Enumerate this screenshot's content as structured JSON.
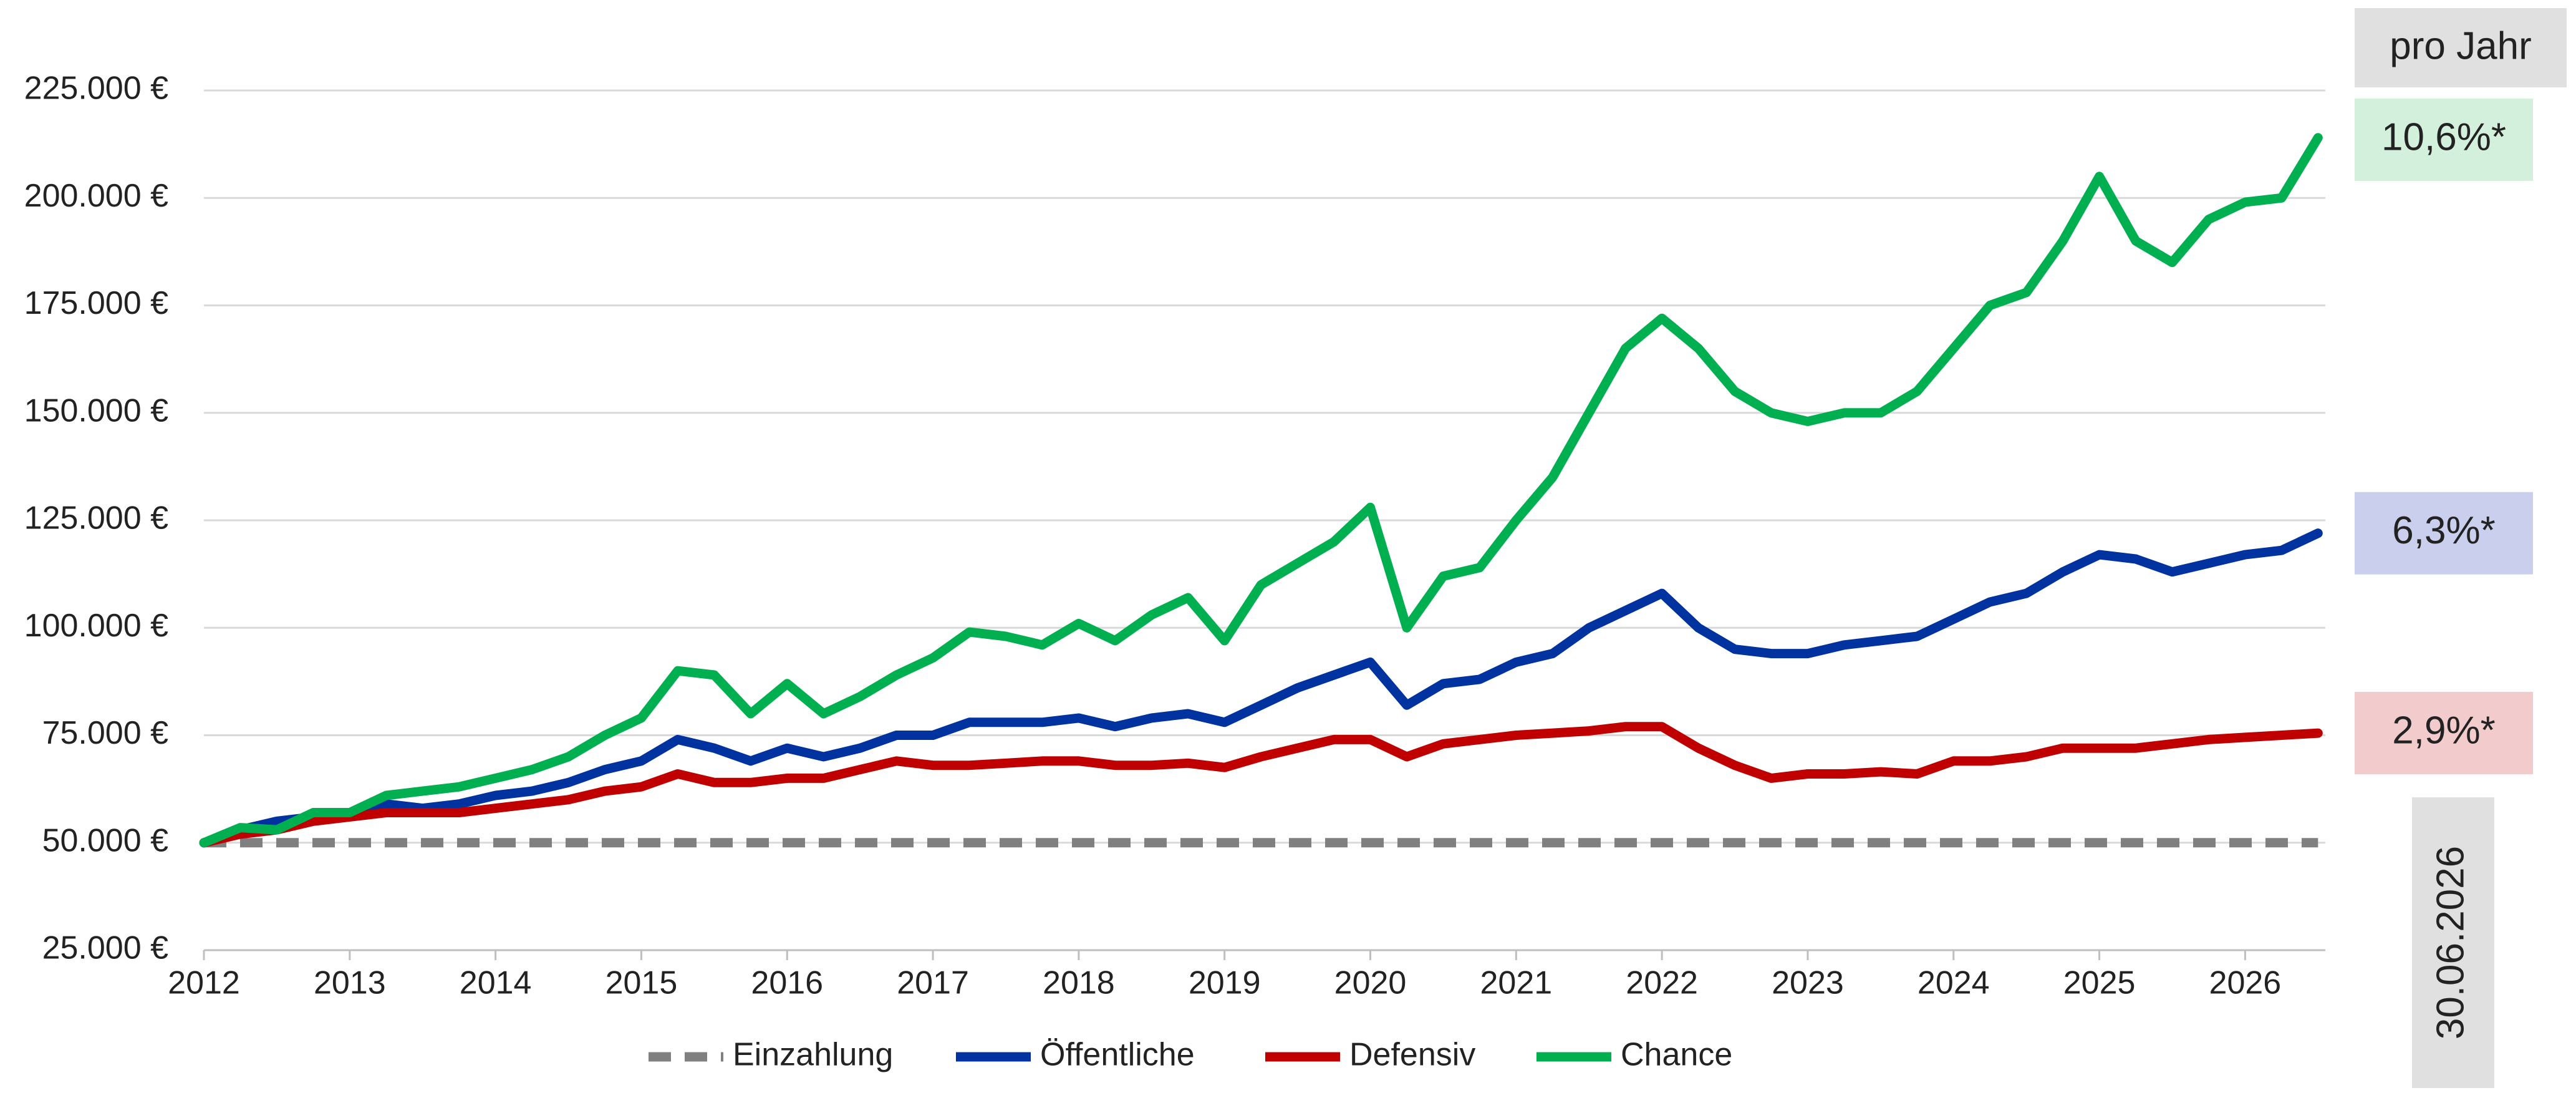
{
  "chart_data": {
    "type": "line",
    "grid": true,
    "header_label": "pro Jahr",
    "date_label": "30.06.2026",
    "xlim": [
      2012,
      2026.55
    ],
    "xticks": [
      2012,
      2013,
      2014,
      2015,
      2016,
      2017,
      2018,
      2019,
      2020,
      2021,
      2022,
      2023,
      2024,
      2025,
      2026
    ],
    "ylim": [
      25000,
      225000
    ],
    "yticks": [
      {
        "value": 25000,
        "label": "25.000 €"
      },
      {
        "value": 50000,
        "label": "50.000 €"
      },
      {
        "value": 75000,
        "label": "75.000 €"
      },
      {
        "value": 100000,
        "label": "100.000 €"
      },
      {
        "value": 125000,
        "label": "125.000 €"
      },
      {
        "value": 150000,
        "label": "150.000 €"
      },
      {
        "value": 175000,
        "label": "175.000 €"
      },
      {
        "value": 200000,
        "label": "200.000 €"
      },
      {
        "value": 225000,
        "label": "225.000 €"
      }
    ],
    "x": [
      2012,
      2012.25,
      2012.5,
      2012.75,
      2013,
      2013.25,
      2013.5,
      2013.75,
      2014,
      2014.25,
      2014.5,
      2014.75,
      2015,
      2015.25,
      2015.5,
      2015.75,
      2016,
      2016.25,
      2016.5,
      2016.75,
      2017,
      2017.25,
      2017.5,
      2017.75,
      2018,
      2018.25,
      2018.5,
      2018.75,
      2019,
      2019.25,
      2019.5,
      2019.75,
      2020,
      2020.25,
      2020.5,
      2020.75,
      2021,
      2021.25,
      2021.5,
      2021.75,
      2022,
      2022.25,
      2022.5,
      2022.75,
      2023,
      2023.25,
      2023.5,
      2023.75,
      2024,
      2024.25,
      2024.5,
      2024.75,
      2025,
      2025.25,
      2025.5,
      2025.75,
      2026,
      2026.25,
      2026.5
    ],
    "series": [
      {
        "name": "Einzahlung",
        "color": "#808080",
        "dashed": true,
        "values": [
          50000,
          50000,
          50000,
          50000,
          50000,
          50000,
          50000,
          50000,
          50000,
          50000,
          50000,
          50000,
          50000,
          50000,
          50000,
          50000,
          50000,
          50000,
          50000,
          50000,
          50000,
          50000,
          50000,
          50000,
          50000,
          50000,
          50000,
          50000,
          50000,
          50000,
          50000,
          50000,
          50000,
          50000,
          50000,
          50000,
          50000,
          50000,
          50000,
          50000,
          50000,
          50000,
          50000,
          50000,
          50000,
          50000,
          50000,
          50000,
          50000,
          50000,
          50000,
          50000,
          50000,
          50000,
          50000,
          50000,
          50000,
          50000,
          50000
        ]
      },
      {
        "name": "Öffentliche",
        "color": "#0033a0",
        "annotation": "6,3%*",
        "annotation_color": "#c9cfec",
        "values": [
          50000,
          53000,
          55000,
          56000,
          57000,
          59000,
          58000,
          59000,
          61000,
          62000,
          64000,
          67000,
          69000,
          74000,
          72000,
          69000,
          72000,
          70000,
          72000,
          75000,
          75000,
          78000,
          78000,
          78000,
          79000,
          77000,
          79000,
          80000,
          78000,
          82000,
          86000,
          89000,
          92000,
          82000,
          87000,
          88000,
          92000,
          94000,
          100000,
          104000,
          108000,
          100000,
          95000,
          94000,
          94000,
          96000,
          97000,
          98000,
          102000,
          106000,
          108000,
          113000,
          117000,
          116000,
          113000,
          115000,
          117000,
          118000,
          122000
        ]
      },
      {
        "name": "Defensiv",
        "color": "#c00000",
        "annotation": "2,9%*",
        "annotation_color": "#f2cccc",
        "values": [
          50000,
          52000,
          53000,
          55000,
          56000,
          57000,
          57000,
          57000,
          58000,
          59000,
          60000,
          62000,
          63000,
          66000,
          64000,
          64000,
          65000,
          65000,
          67000,
          69000,
          68000,
          68000,
          68500,
          69000,
          69000,
          68000,
          68000,
          68500,
          67500,
          70000,
          72000,
          74000,
          74000,
          70000,
          73000,
          74000,
          75000,
          75500,
          76000,
          77000,
          77000,
          72000,
          68000,
          65000,
          66000,
          66000,
          66500,
          66000,
          69000,
          69000,
          70000,
          72000,
          72000,
          72000,
          73000,
          74000,
          74500,
          75000,
          75500
        ]
      },
      {
        "name": "Chance",
        "color": "#00b050",
        "annotation": "10,6%*",
        "annotation_color": "#d3f0dc",
        "values": [
          50000,
          53500,
          53000,
          57000,
          57000,
          61000,
          62000,
          63000,
          65000,
          67000,
          70000,
          75000,
          79000,
          90000,
          89000,
          80000,
          87000,
          80000,
          84000,
          89000,
          93000,
          99000,
          98000,
          96000,
          101000,
          97000,
          103000,
          107000,
          97000,
          110000,
          115000,
          120000,
          128000,
          100000,
          112000,
          114000,
          125000,
          135000,
          150000,
          165000,
          172000,
          165000,
          155000,
          150000,
          148000,
          150000,
          150000,
          155000,
          165000,
          175000,
          178000,
          190000,
          205000,
          190000,
          185000,
          195000,
          199000,
          200000,
          214000
        ]
      }
    ]
  }
}
